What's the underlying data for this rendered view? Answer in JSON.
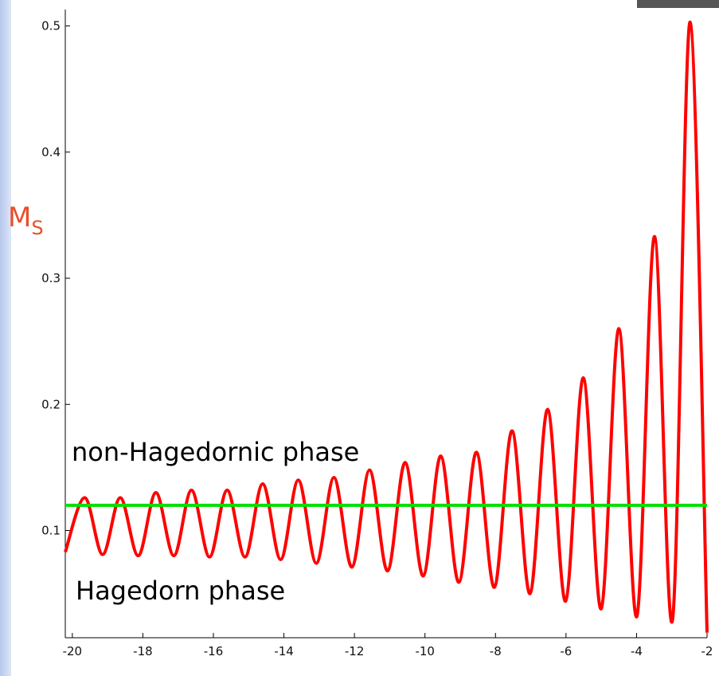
{
  "chart_data": {
    "type": "line",
    "y_label": {
      "main": "M",
      "sub": "S"
    },
    "annotations": [
      "non-Hagedornic phase",
      "Hagedorn phase"
    ],
    "xlim": [
      -20.2,
      -2
    ],
    "ylim": [
      0.015,
      0.513
    ],
    "xticks": [
      -20,
      -18,
      -16,
      -14,
      -12,
      -10,
      -8,
      -6,
      -4,
      -2
    ],
    "yticks": [
      0.1,
      0.2,
      0.3,
      0.4,
      0.5
    ],
    "series": [
      {
        "color": "#ff0000",
        "x": [
          -20.2,
          -19.65,
          -19.14,
          -18.64,
          -18.13,
          -17.63,
          -17.12,
          -16.62,
          -16.11,
          -15.61,
          -15.1,
          -14.6,
          -14.09,
          -13.59,
          -13.08,
          -12.58,
          -12.07,
          -11.57,
          -11.06,
          -10.56,
          -10.05,
          -9.55,
          -9.04,
          -8.54,
          -8.03,
          -7.53,
          -7.02,
          -6.52,
          -6.01,
          -5.51,
          -5.0,
          -4.5,
          -3.99,
          -3.49,
          -2.98,
          -2.48,
          -2.0
        ],
        "values": [
          0.083,
          0.126,
          0.081,
          0.126,
          0.08,
          0.13,
          0.08,
          0.132,
          0.079,
          0.132,
          0.079,
          0.137,
          0.077,
          0.14,
          0.074,
          0.142,
          0.071,
          0.148,
          0.068,
          0.154,
          0.064,
          0.159,
          0.059,
          0.162,
          0.055,
          0.179,
          0.05,
          0.196,
          0.044,
          0.221,
          0.038,
          0.26,
          0.032,
          0.333,
          0.029,
          0.503,
          0.019
        ]
      },
      {
        "color": "#00e000",
        "x": [
          -20.2,
          -2
        ],
        "values": [
          0.12,
          0.12
        ]
      }
    ]
  }
}
